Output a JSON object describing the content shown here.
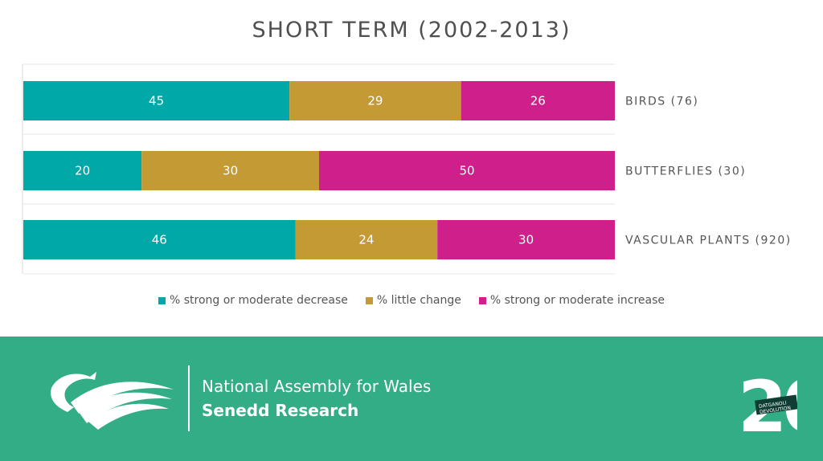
{
  "chart_data": {
    "type": "bar",
    "orientation": "horizontal",
    "stacked": true,
    "title": "SHORT TERM (2002-2013)",
    "categories": [
      "BIRDS (76)",
      "BUTTERFLIES (30)",
      "VASCULAR PLANTS (920)"
    ],
    "series": [
      {
        "name": "% strong or moderate decrease",
        "values": [
          45,
          20,
          46
        ],
        "color": "#00a8a8"
      },
      {
        "name": "% little change",
        "values": [
          29,
          30,
          24
        ],
        "color": "#c49a35"
      },
      {
        "name": "% strong or moderate increase",
        "values": [
          26,
          50,
          30
        ],
        "color": "#cf1f8a"
      }
    ],
    "xlim": [
      0,
      100
    ],
    "grid": true,
    "legend_position": "bottom"
  },
  "footer": {
    "organisation": "National Assembly for Wales",
    "department": "Senedd Research",
    "background_color": "#33ad85",
    "logo_icon": "dragon-waves-logo",
    "badge_icon": "20-years-devolution-badge"
  }
}
